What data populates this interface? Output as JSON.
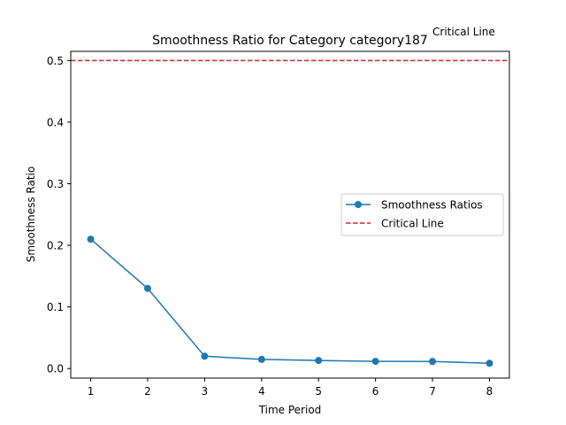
{
  "chart_data": {
    "type": "line",
    "title": "Smoothness Ratio for Category category187",
    "xlabel": "Time Period",
    "ylabel": "Smoothness Ratio",
    "x": [
      1,
      2,
      3,
      4,
      5,
      6,
      7,
      8
    ],
    "xticks": [
      "1",
      "2",
      "3",
      "4",
      "5",
      "6",
      "7",
      "8"
    ],
    "yticks": [
      "0.0",
      "0.1",
      "0.2",
      "0.3",
      "0.4",
      "0.5"
    ],
    "xlim": [
      0.65,
      8.35
    ],
    "ylim": [
      -0.0155,
      0.5149
    ],
    "grid": false,
    "legend_position": "center-right",
    "series": [
      {
        "name": "Smoothness Ratios",
        "values": [
          0.21,
          0.13,
          0.02,
          0.0148,
          0.013,
          0.0117,
          0.0114,
          0.0085
        ],
        "color": "#1f77b4",
        "marker": "circle"
      }
    ],
    "reference_line": {
      "name": "Critical Line",
      "y": 0.5,
      "color": "#d62728",
      "style": "dashed"
    },
    "annotation": "Critical Line"
  }
}
